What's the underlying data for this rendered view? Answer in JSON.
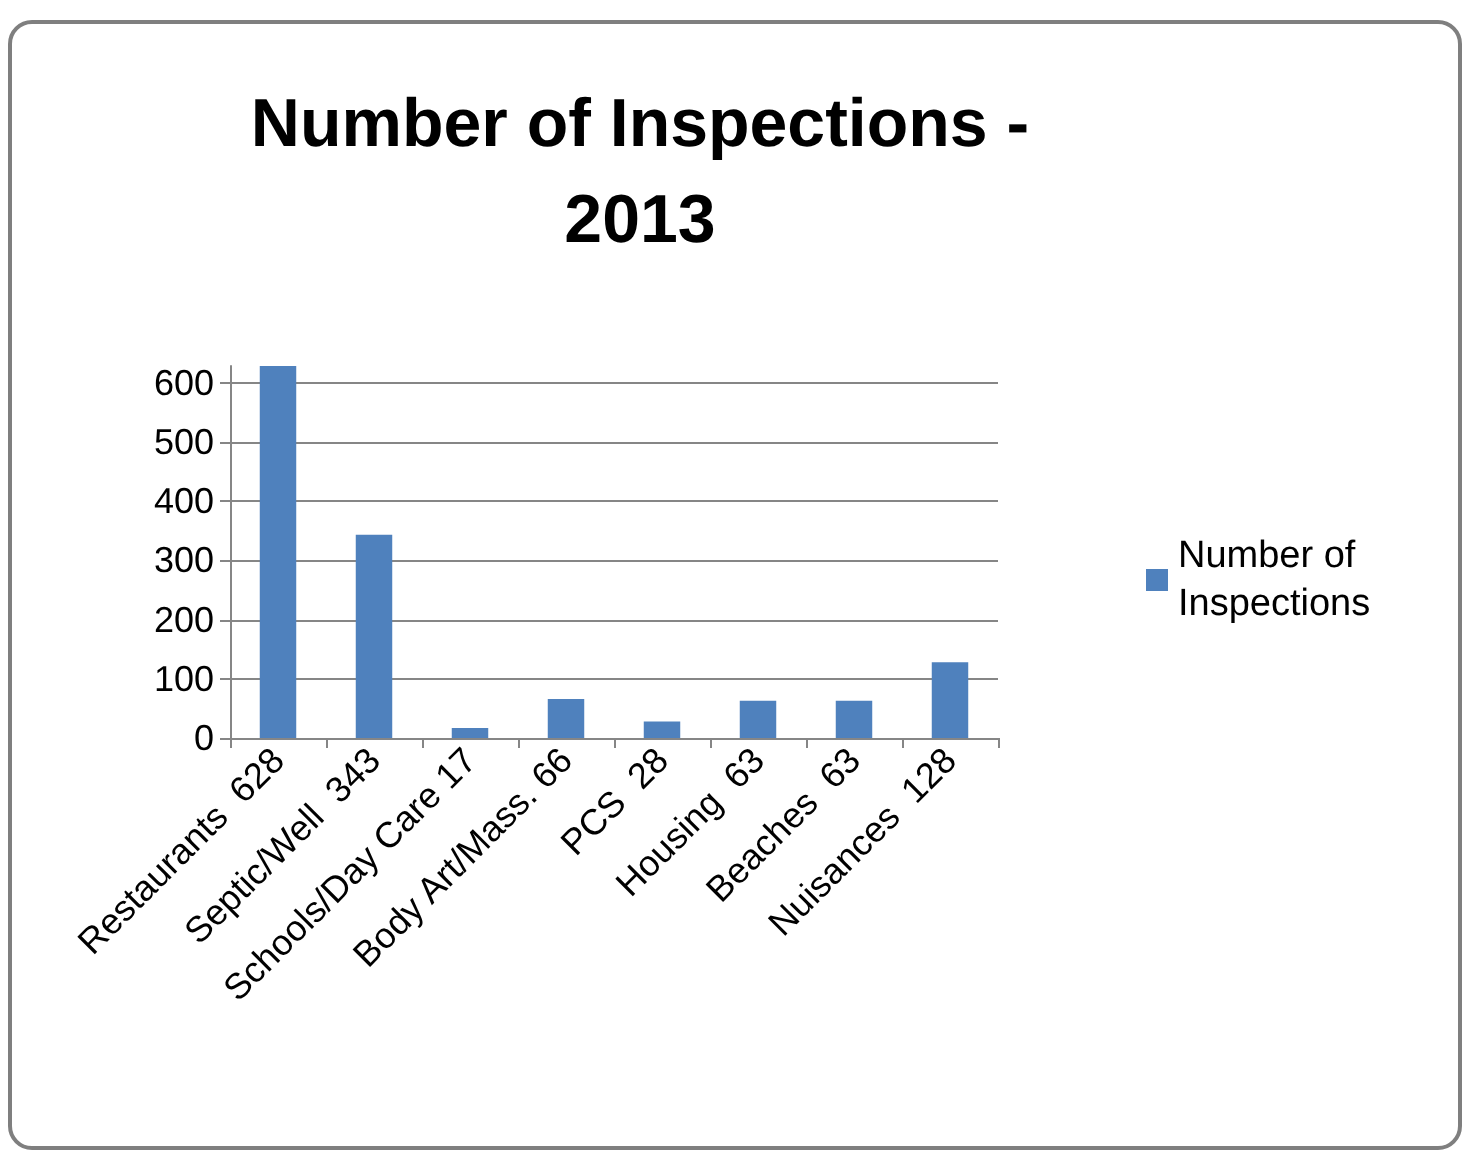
{
  "chart_data": {
    "type": "bar",
    "title": "Number of Inspections - 2013",
    "categories": [
      "Restaurants  628",
      "Septic/Well  343",
      "Schools/Day Care 17",
      "Body Art/Mass. 66",
      "PCS  28",
      "Housing  63",
      "Beaches  63",
      "Nuisances  128"
    ],
    "series": [
      {
        "name": "Number of Inspections",
        "color": "#4f81bd",
        "values": [
          628,
          343,
          17,
          66,
          28,
          63,
          63,
          128
        ]
      }
    ],
    "ylim": [
      0,
      628
    ],
    "yticks": [
      0,
      100,
      200,
      300,
      400,
      500,
      600
    ],
    "grid": "y",
    "legend": "right"
  }
}
